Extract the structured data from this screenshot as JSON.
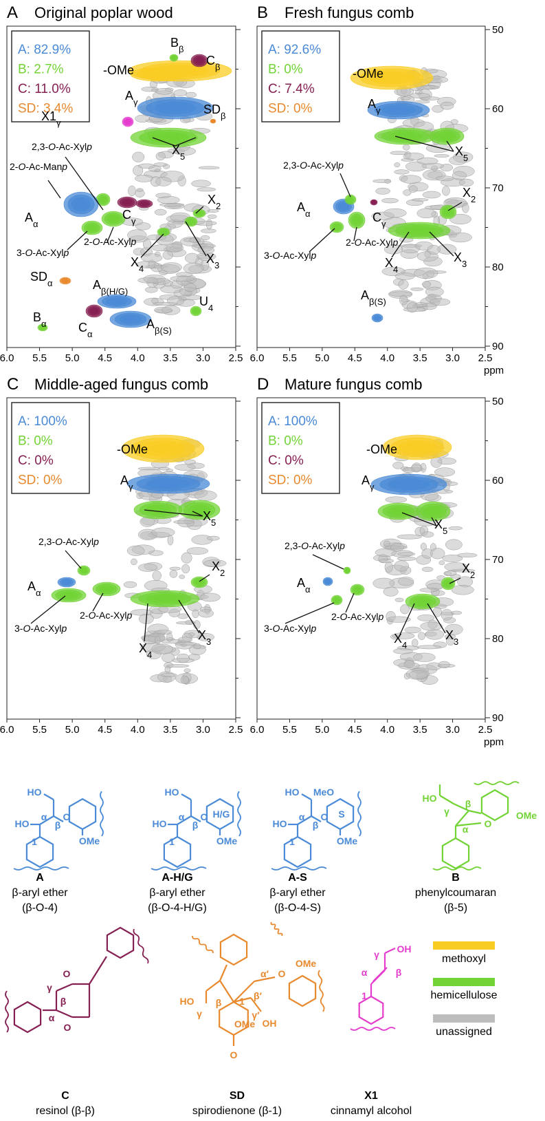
{
  "panels": [
    {
      "letter": "A",
      "title": "Original poplar wood",
      "legend": [
        "A: 82.9%",
        "B: 2.7%",
        "C: 11.0%",
        "SD: 3.4%"
      ],
      "annotations": [
        [
          "-OMe"
        ],
        [
          "B",
          {
            "sub": "β"
          }
        ],
        [
          "C",
          {
            "sub": "β"
          }
        ],
        [
          "A",
          {
            "sub": "γ"
          }
        ],
        [
          "X1",
          {
            "sub": "γ"
          }
        ],
        [
          "SD",
          {
            "sub": "β"
          }
        ],
        [
          "2,3-",
          {
            "it": "O"
          },
          "-Ac-Xyl",
          {
            "it": "p"
          }
        ],
        [
          "X",
          {
            "sub": "5"
          }
        ],
        [
          "2-",
          {
            "it": "O"
          },
          "-Ac-Man",
          {
            "it": "p"
          }
        ],
        [
          "X",
          {
            "sub": "2"
          }
        ],
        [
          "A",
          {
            "sub": "α"
          }
        ],
        [
          "C",
          {
            "sub": "γ"
          }
        ],
        [
          "3-",
          {
            "it": "O"
          },
          "-Ac-Xyl",
          {
            "it": "p"
          }
        ],
        [
          "2-",
          {
            "it": "O"
          },
          "-Ac-Xyl",
          {
            "it": "p"
          }
        ],
        [
          "X",
          {
            "sub": "4"
          }
        ],
        [
          "X",
          {
            "sub": "3"
          }
        ],
        [
          "SD",
          {
            "sub": "α"
          }
        ],
        [
          "A",
          {
            "sub": "β(H/G)"
          }
        ],
        [
          "U",
          {
            "sub": "4"
          }
        ],
        [
          "B",
          {
            "sub": "α"
          }
        ],
        [
          "C",
          {
            "sub": "α"
          }
        ],
        [
          "A",
          {
            "sub": "β(S)"
          }
        ]
      ],
      "xticks": [
        "6.0",
        "5.5",
        "5.0",
        "4.5",
        "4.0",
        "3.5",
        "3.0",
        "2.5"
      ]
    },
    {
      "letter": "B",
      "title": "Fresh fungus comb",
      "legend": [
        "A: 92.6%",
        "B: 0%",
        "C: 7.4%",
        "SD: 0%"
      ],
      "annotations": [
        [
          "-OMe"
        ],
        [
          "A",
          {
            "sub": "γ"
          }
        ],
        [
          "X",
          {
            "sub": "5"
          }
        ],
        [
          "2,3-",
          {
            "it": "O"
          },
          "-Ac-Xyl",
          {
            "it": "p"
          }
        ],
        [
          "X",
          {
            "sub": "2"
          }
        ],
        [
          "A",
          {
            "sub": "α"
          }
        ],
        [
          "C",
          {
            "sub": "γ"
          }
        ],
        [
          "3-",
          {
            "it": "O"
          },
          "-Ac-Xyl",
          {
            "it": "p"
          }
        ],
        [
          "2-",
          {
            "it": "O"
          },
          "-Ac-Xyl",
          {
            "it": "p"
          }
        ],
        [
          "X",
          {
            "sub": "4"
          }
        ],
        [
          "X",
          {
            "sub": "3"
          }
        ],
        [
          "A",
          {
            "sub": "β(S)"
          }
        ]
      ],
      "xticks": [
        "6.0",
        "5.5",
        "5.0",
        "4.5",
        "4.0",
        "3.5",
        "3.0",
        "2.5"
      ],
      "yticks": [
        "50",
        "60",
        "70",
        "80",
        "90"
      ],
      "unit": "ppm"
    },
    {
      "letter": "C",
      "title": "Middle-aged fungus comb",
      "legend": [
        "A: 100%",
        "B: 0%",
        "C: 0%",
        "SD: 0%"
      ],
      "annotations": [
        [
          "-OMe"
        ],
        [
          "A",
          {
            "sub": "γ"
          }
        ],
        [
          "X",
          {
            "sub": "5"
          }
        ],
        [
          "2,3-",
          {
            "it": "O"
          },
          "-Ac-Xyl",
          {
            "it": "p"
          }
        ],
        [
          "X",
          {
            "sub": "2"
          }
        ],
        [
          "A",
          {
            "sub": "α"
          }
        ],
        [
          "3-",
          {
            "it": "O"
          },
          "-Ac-Xyl",
          {
            "it": "p"
          }
        ],
        [
          "2-",
          {
            "it": "O"
          },
          "-Ac-Xyl",
          {
            "it": "p"
          }
        ],
        [
          "X",
          {
            "sub": "4"
          }
        ],
        [
          "X",
          {
            "sub": "3"
          }
        ]
      ],
      "xticks": [
        "6.0",
        "5.5",
        "5.0",
        "4.5",
        "4.0",
        "3.5",
        "3.0",
        "2.5"
      ]
    },
    {
      "letter": "D",
      "title": "Mature fungus comb",
      "legend": [
        "A: 100%",
        "B: 0%",
        "C: 0%",
        "SD: 0%"
      ],
      "annotations": [
        [
          "-OMe"
        ],
        [
          "A",
          {
            "sub": "γ"
          }
        ],
        [
          "X",
          {
            "sub": "5"
          }
        ],
        [
          "2,3-",
          {
            "it": "O"
          },
          "-Ac-Xyl",
          {
            "it": "p"
          }
        ],
        [
          "X",
          {
            "sub": "2"
          }
        ],
        [
          "A",
          {
            "sub": "α"
          }
        ],
        [
          "3-",
          {
            "it": "O"
          },
          "-Ac-Xyl",
          {
            "it": "p"
          }
        ],
        [
          "2-",
          {
            "it": "O"
          },
          "-Ac-Xyl",
          {
            "it": "p"
          }
        ],
        [
          "X",
          {
            "sub": "4"
          }
        ],
        [
          "X",
          {
            "sub": "3"
          }
        ]
      ],
      "xticks": [
        "6.0",
        "5.5",
        "5.0",
        "4.5",
        "4.0",
        "3.5",
        "3.0",
        "2.5"
      ],
      "yticks": [
        "50",
        "60",
        "70",
        "80",
        "90"
      ],
      "unit": "ppm"
    }
  ],
  "structures": [
    {
      "id": "A",
      "description": [
        "β-aryl ether",
        "(β-O-4)"
      ],
      "atoms": [
        "HO",
        "HO",
        "α",
        "β",
        "O",
        "1",
        "OMe"
      ]
    },
    {
      "id": "A-H/G",
      "description": [
        "β-aryl ether",
        "(β-O-4-H/G)"
      ],
      "atoms": [
        "HO",
        "HO",
        "α",
        "β",
        "O",
        "1",
        "H/G",
        "OMe"
      ]
    },
    {
      "id": "A-S",
      "description": [
        "β-aryl ether",
        "(β-O-4-S)"
      ],
      "atoms": [
        "HO",
        "MeO",
        "HO",
        "α",
        "β",
        "O",
        "1",
        "S",
        "OMe"
      ]
    },
    {
      "id": "B",
      "description": [
        "phenylcoumaran",
        "(β-5)"
      ],
      "atoms": [
        "HO",
        "γ",
        "β",
        "O",
        "α",
        "OMe"
      ]
    },
    {
      "id": "C",
      "description": [
        "resinol (β-β)"
      ],
      "atoms": [
        "O",
        "γ",
        "β",
        "α",
        "O"
      ]
    },
    {
      "id": "SD",
      "description": [
        "spirodienone (β-1)"
      ],
      "atoms": [
        "HO",
        "γ",
        "β",
        "1",
        "α′",
        "O",
        "β′",
        "γ′",
        "OH",
        "OMe",
        "O",
        "OMe"
      ]
    },
    {
      "id": "X1",
      "description": [
        "cinnamyl alcohol"
      ],
      "atoms": [
        "OH",
        "γ",
        "β",
        "α",
        "1"
      ]
    }
  ],
  "color_key": [
    "methoxyl",
    "hemicellulose",
    "unassigned"
  ]
}
